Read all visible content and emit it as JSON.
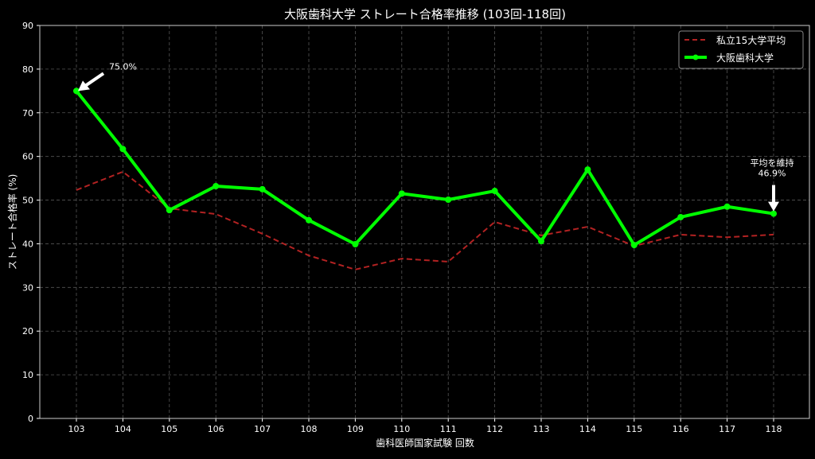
{
  "chart_data": {
    "type": "line",
    "title": "大阪歯科大学 ストレート合格率推移 (103回-118回)",
    "xlabel": "歯科医師国家試験 回数",
    "ylabel": "ストレート合格率 (%)",
    "ylim": [
      0,
      90
    ],
    "yticks": [
      0,
      10,
      20,
      30,
      40,
      50,
      60,
      70,
      80,
      90
    ],
    "grid": true,
    "legend_position": "top-right",
    "categories": [
      "103",
      "104",
      "105",
      "106",
      "107",
      "108",
      "109",
      "110",
      "111",
      "112",
      "113",
      "114",
      "115",
      "116",
      "117",
      "118"
    ],
    "series": [
      {
        "name": "私立15大学平均",
        "color": "#b22222",
        "style": "dashed",
        "values": [
          52.3,
          56.5,
          48.1,
          46.8,
          42.3,
          37.3,
          34.1,
          36.6,
          35.9,
          45.0,
          41.9,
          43.9,
          39.5,
          42.1,
          41.5,
          42.1
        ]
      },
      {
        "name": "大阪歯科大学",
        "color": "#00ff00",
        "style": "solid-markers",
        "values": [
          75.0,
          61.7,
          47.7,
          53.2,
          52.5,
          45.4,
          39.9,
          51.5,
          50.1,
          52.1,
          40.6,
          57.0,
          39.7,
          46.1,
          48.5,
          46.9
        ]
      }
    ],
    "annotations": [
      {
        "category": "103",
        "value": 75.0,
        "text": "75.0%"
      },
      {
        "category": "118",
        "value": 46.9,
        "text": "平均を維持\n46.9%"
      }
    ]
  }
}
